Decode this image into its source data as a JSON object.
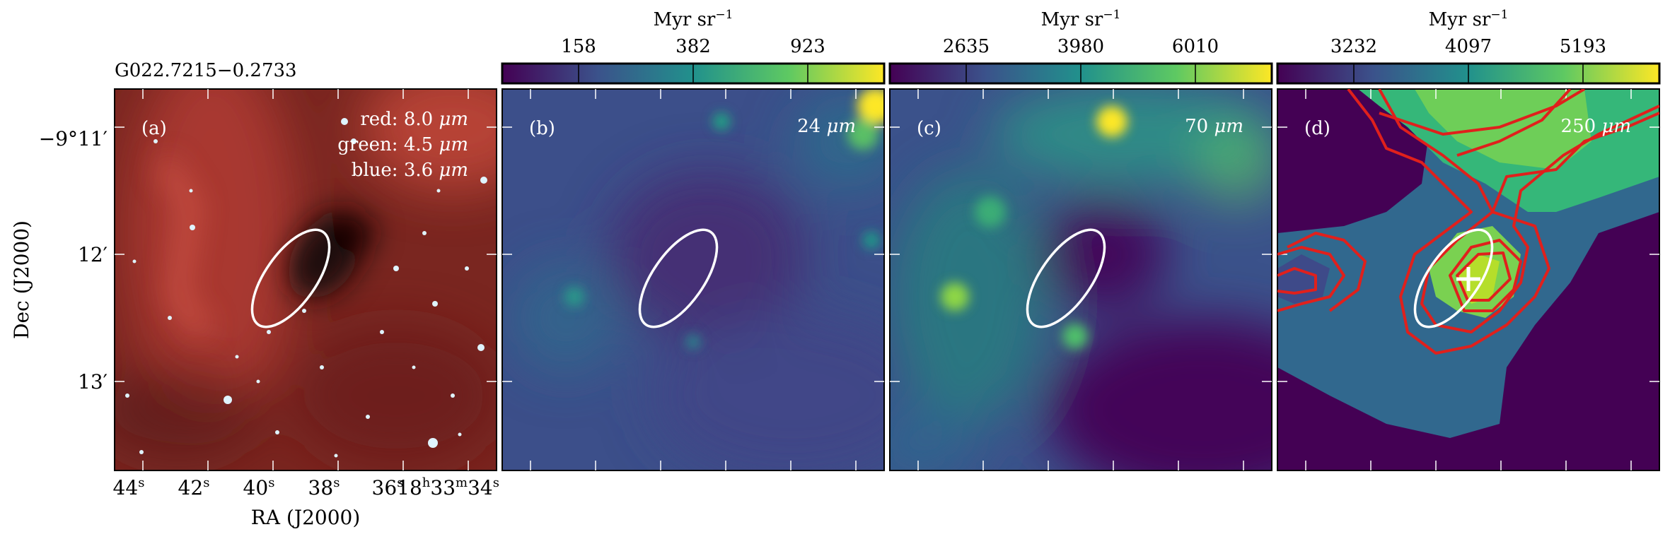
{
  "figure": {
    "source_name": "G022.7215−0.2733",
    "colorbar_unit": "Myr sr",
    "colorbar_unit_exp": "−1",
    "x_axis": {
      "title": "RA (J2000)",
      "ticks": [
        {
          "main": "44",
          "sup": "s"
        },
        {
          "main": "42",
          "sup": "s"
        },
        {
          "main": "40",
          "sup": "s"
        },
        {
          "main": "38",
          "sup": "s"
        },
        {
          "main": "36",
          "sup": "s"
        },
        {
          "main": "18",
          "sup": "h",
          "main2": "33",
          "sup2": "m",
          "main3": "34",
          "sup3": "s"
        }
      ]
    },
    "y_axis": {
      "title": "Dec (J2000)",
      "ticks": [
        "−9°11′",
        "12′",
        "13′"
      ]
    },
    "panels": [
      {
        "id": "a",
        "label": "(a)",
        "legend": [
          {
            "name": "red",
            "wavelength": "8.0",
            "unit": "μm"
          },
          {
            "name": "green",
            "wavelength": "4.5",
            "unit": "μm"
          },
          {
            "name": "blue",
            "wavelength": "3.6",
            "unit": "μm"
          }
        ]
      },
      {
        "id": "b",
        "label": "(b)",
        "band_value": "24",
        "band_unit": "μm",
        "colorbar_ticks": [
          "158",
          "382",
          "923"
        ]
      },
      {
        "id": "c",
        "label": "(c)",
        "band_value": "70",
        "band_unit": "μm",
        "colorbar_ticks": [
          "2635",
          "3980",
          "6010"
        ]
      },
      {
        "id": "d",
        "label": "(d)",
        "band_value": "250",
        "band_unit": "μm",
        "colorbar_ticks": [
          "3232",
          "4097",
          "5193"
        ],
        "marker": "plus"
      }
    ],
    "colors": {
      "ellipse": "#ffffff",
      "contour": "#e0201c",
      "marker": "#ffffff",
      "rgb_background": "#8a2a22",
      "colormap": [
        "#440154",
        "#3b528b",
        "#21918c",
        "#5ec962",
        "#fde725"
      ]
    }
  }
}
